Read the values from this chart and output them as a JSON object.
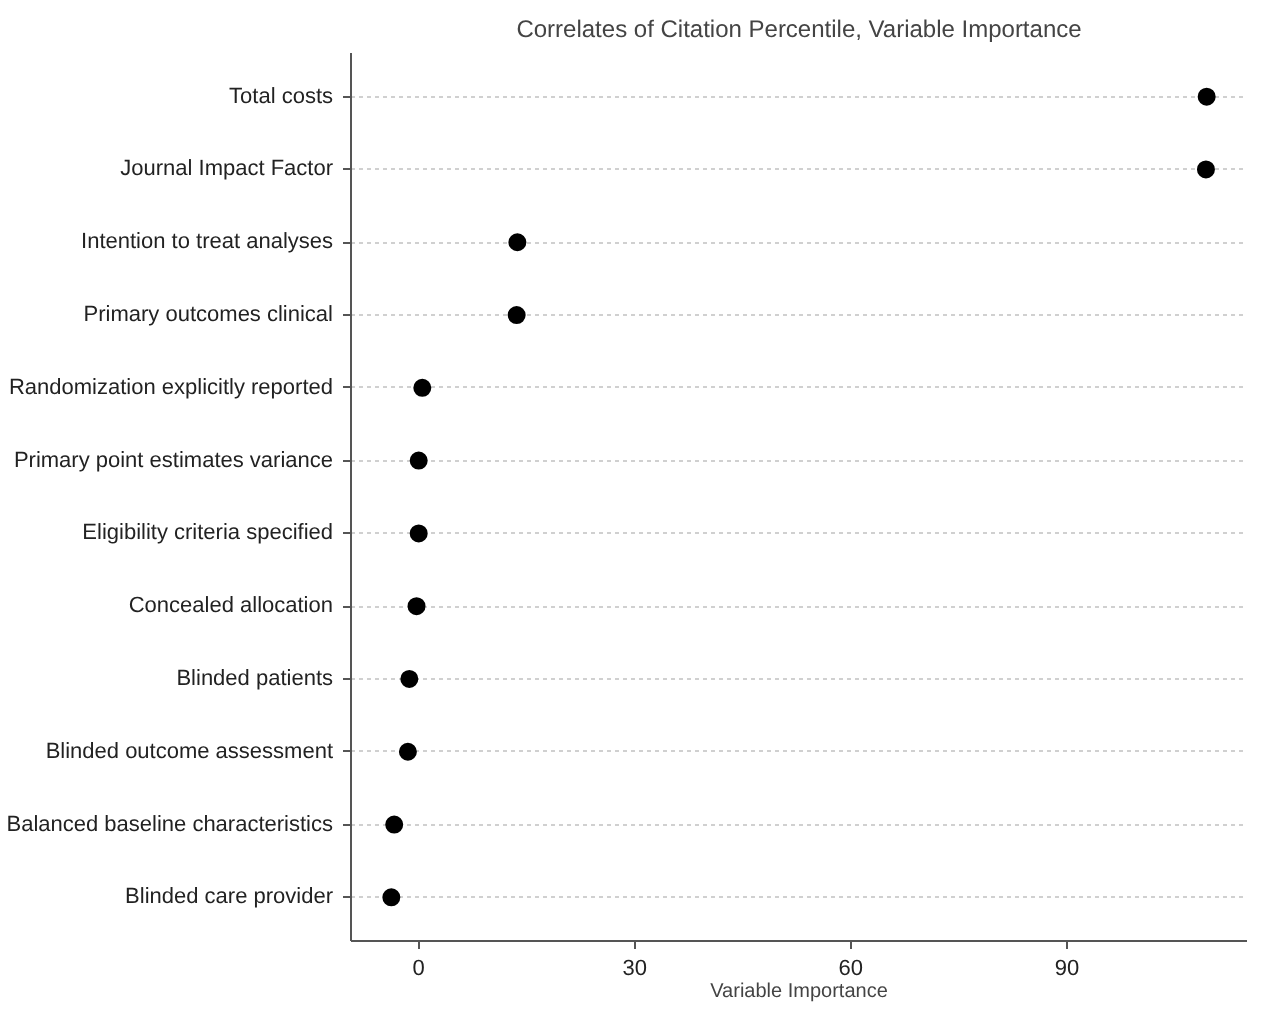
{
  "chart_data": {
    "type": "scatter",
    "title": "Correlates of Citation Percentile, Variable Importance",
    "xlabel": "Variable Importance",
    "categories": [
      "Total costs",
      "Journal Impact Factor",
      "Intention to treat analyses",
      "Primary outcomes clinical",
      "Randomization explicitly reported",
      "Primary point estimates variance",
      "Eligibility criteria specified",
      "Concealed allocation",
      "Blinded patients",
      "Blinded outcome assessment",
      "Balanced baseline characteristics",
      "Blinded care provider"
    ],
    "orientation": "horizontal",
    "values": [
      109.4,
      109.3,
      13.7,
      13.6,
      0.5,
      0,
      0,
      -0.3,
      -1.3,
      -1.5,
      -3.4,
      -3.8
    ],
    "color": "#000000",
    "marker": "circle",
    "grid": "y",
    "xlim": [
      -9.4,
      115
    ],
    "xticks": [
      0,
      30,
      60,
      90
    ]
  }
}
